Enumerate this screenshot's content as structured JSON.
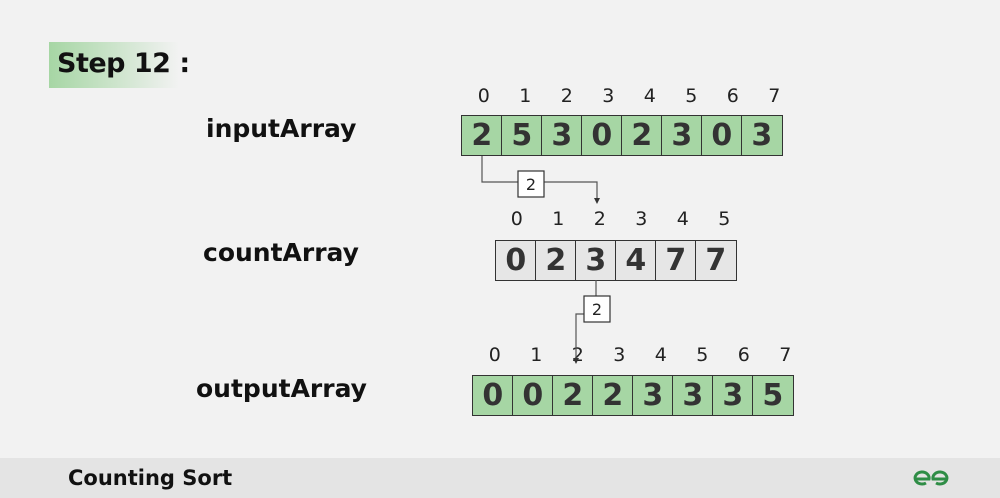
{
  "step_title": "Step 12 :",
  "input": {
    "label": "inputArray",
    "indices": [
      "0",
      "1",
      "2",
      "3",
      "4",
      "5",
      "6",
      "7"
    ],
    "values": [
      "2",
      "5",
      "3",
      "0",
      "2",
      "3",
      "0",
      "3"
    ]
  },
  "count": {
    "label": "countArray",
    "indices": [
      "0",
      "1",
      "2",
      "3",
      "4",
      "5"
    ],
    "values": [
      "0",
      "2",
      "3",
      "4",
      "7",
      "7"
    ]
  },
  "output": {
    "label": "outputArray",
    "indices": [
      "0",
      "1",
      "2",
      "3",
      "4",
      "5",
      "6",
      "7"
    ],
    "values": [
      "0",
      "0",
      "2",
      "2",
      "3",
      "3",
      "3",
      "5"
    ]
  },
  "connector1_value": "2",
  "connector2_value": "2",
  "footer": {
    "title": "Counting Sort",
    "logo_icon": "gfg-logo"
  },
  "colors": {
    "green_cell": "#a6d6a4",
    "gray_cell": "#e6e6e6",
    "logo": "#2f8d46"
  }
}
